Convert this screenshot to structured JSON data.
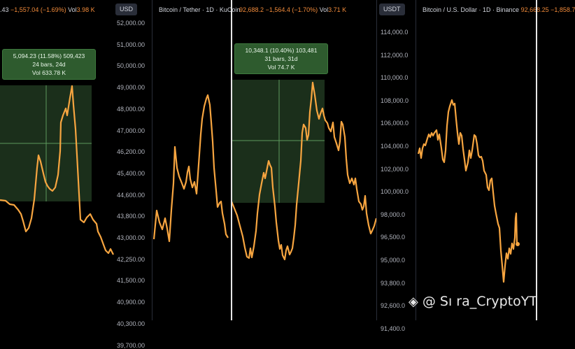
{
  "panel1": {
    "header": {
      "price_tail": ".43",
      "change": "−1,557.04 (−1.69%)",
      "vol_label": "Vol",
      "vol": "3.98 K"
    },
    "unit": "USD",
    "tooltip": {
      "line1": "5,094.23 (11.58%) 509,423",
      "line2": "24 bars, 24d",
      "line3": "Vol 633.78 K"
    },
    "ticks": [
      "52,000.00",
      "51,000.00",
      "50,000.00",
      "49,000.00",
      "48,000.00",
      "47,000.00",
      "46,200.00",
      "45,400.00",
      "44,600.00",
      "43,800.00",
      "43,000.00",
      "42,250.00",
      "41,500.00",
      "40,900.00",
      "40,300.00",
      "39,700.00"
    ]
  },
  "panel2": {
    "header": {
      "title": "Bitcoin / Tether · 1D · KuCoin",
      "price": "92,688.2",
      "change": "−1,564.4 (−1.70%)",
      "vol_label": "Vol",
      "vol": "3.71 K"
    },
    "tooltip": {
      "line1": "10,348.1 (10.40%) 103,481",
      "line2": "31 bars, 31d",
      "line3": "Vol 74.7 K"
    }
  },
  "panel3": {
    "unit": "USDT",
    "header": {
      "title": "Bitcoin / U.S. Dollar · 1D · Binance",
      "price": "92,668.25",
      "change": "−1,858.7"
    },
    "ticks": [
      "114,000.0",
      "112,000.0",
      "110,000.0",
      "108,000.0",
      "106,000.0",
      "104,000.0",
      "102,000.0",
      "100,000.0",
      "98,000.0",
      "96,500.0",
      "95,000.0",
      "93,800.0",
      "92,600.0",
      "91,400.0"
    ]
  },
  "watermark": {
    "text": "@ Sı ra_CryptoYT"
  },
  "colors": {
    "line": "#f7a540",
    "box": "#1b2f1b",
    "tooltip": "#2e5b2e",
    "negative": "#f08a3a"
  }
}
